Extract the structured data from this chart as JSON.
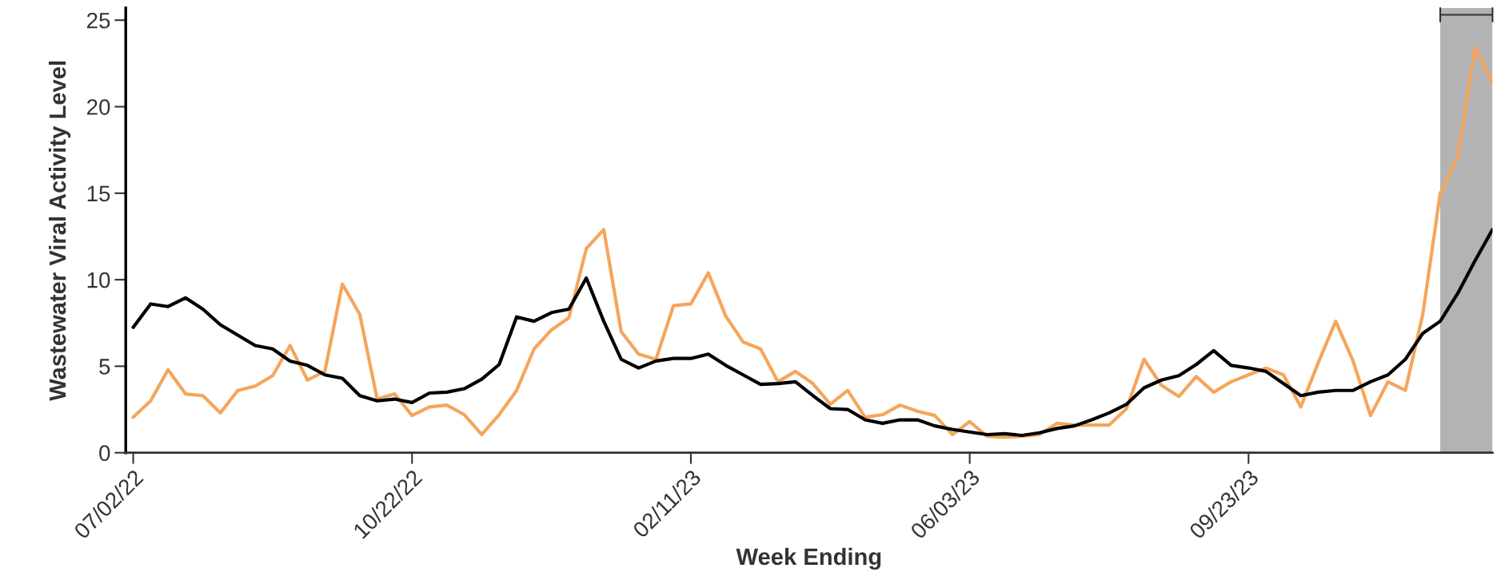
{
  "chart_data": {
    "type": "line",
    "xlabel": "Week Ending",
    "ylabel": "Wastewater Viral Activity Level",
    "x": [
      "2022-07-02",
      "2022-07-09",
      "2022-07-16",
      "2022-07-23",
      "2022-07-30",
      "2022-08-06",
      "2022-08-13",
      "2022-08-20",
      "2022-08-27",
      "2022-09-03",
      "2022-09-10",
      "2022-09-17",
      "2022-09-24",
      "2022-10-01",
      "2022-10-08",
      "2022-10-15",
      "2022-10-22",
      "2022-10-29",
      "2022-11-05",
      "2022-11-12",
      "2022-11-19",
      "2022-11-26",
      "2022-12-03",
      "2022-12-10",
      "2022-12-17",
      "2022-12-24",
      "2022-12-31",
      "2023-01-07",
      "2023-01-14",
      "2023-01-21",
      "2023-01-28",
      "2023-02-04",
      "2023-02-11",
      "2023-02-18",
      "2023-02-25",
      "2023-03-04",
      "2023-03-11",
      "2023-03-18",
      "2023-03-25",
      "2023-04-01",
      "2023-04-08",
      "2023-04-15",
      "2023-04-22",
      "2023-04-29",
      "2023-05-06",
      "2023-05-13",
      "2023-05-20",
      "2023-05-27",
      "2023-06-03",
      "2023-06-10",
      "2023-06-17",
      "2023-06-24",
      "2023-07-01",
      "2023-07-08",
      "2023-07-15",
      "2023-07-22",
      "2023-07-29",
      "2023-08-05",
      "2023-08-12",
      "2023-08-19",
      "2023-08-26",
      "2023-09-02",
      "2023-09-09",
      "2023-09-16",
      "2023-09-23",
      "2023-09-30",
      "2023-10-07",
      "2023-10-14",
      "2023-10-21",
      "2023-10-28",
      "2023-11-04",
      "2023-11-11",
      "2023-11-18",
      "2023-11-25",
      "2023-12-02",
      "2023-12-09",
      "2023-12-16",
      "2023-12-23",
      "2023-12-30"
    ],
    "series": [
      {
        "color": "#f5a55c",
        "values": [
          2.05,
          3.0,
          4.8,
          3.4,
          3.3,
          2.3,
          3.6,
          3.85,
          4.45,
          6.2,
          4.2,
          4.7,
          9.75,
          8.0,
          3.1,
          3.4,
          2.15,
          2.65,
          2.75,
          2.2,
          1.05,
          2.2,
          3.6,
          6.0,
          7.1,
          7.8,
          11.8,
          12.9,
          7.0,
          5.7,
          5.4,
          8.5,
          8.6,
          10.4,
          7.9,
          6.4,
          6.0,
          4.1,
          4.7,
          4.0,
          2.8,
          3.6,
          2.05,
          2.2,
          2.75,
          2.4,
          2.15,
          1.05,
          1.8,
          0.95,
          0.9,
          0.95,
          1.05,
          1.7,
          1.6,
          1.6,
          1.6,
          2.55,
          5.4,
          3.9,
          3.25,
          4.4,
          3.5,
          4.1,
          4.5,
          4.9,
          4.5,
          2.65,
          5.2,
          7.6,
          5.3,
          2.15,
          4.1,
          3.6,
          8.0,
          15.0,
          17.1,
          23.4,
          21.4
        ]
      },
      {
        "color": "#000000",
        "values": [
          7.25,
          8.6,
          8.45,
          8.95,
          8.3,
          7.4,
          6.8,
          6.2,
          6.0,
          5.3,
          5.05,
          4.5,
          4.3,
          3.3,
          3.0,
          3.1,
          2.9,
          3.45,
          3.5,
          3.7,
          4.25,
          5.1,
          7.85,
          7.6,
          8.1,
          8.3,
          10.1,
          7.6,
          5.4,
          4.9,
          5.3,
          5.45,
          5.45,
          5.7,
          5.05,
          4.5,
          3.95,
          4.0,
          4.1,
          3.3,
          2.55,
          2.5,
          1.9,
          1.7,
          1.9,
          1.9,
          1.55,
          1.35,
          1.2,
          1.05,
          1.1,
          1.0,
          1.15,
          1.4,
          1.55,
          1.9,
          2.3,
          2.8,
          3.75,
          4.2,
          4.45,
          5.1,
          5.9,
          5.05,
          4.9,
          4.7,
          4.0,
          3.3,
          3.5,
          3.6,
          3.6,
          4.1,
          4.5,
          5.4,
          6.9,
          7.6,
          9.2,
          11.1,
          12.9
        ]
      }
    ],
    "xlim": [
      "2022-06-29",
      "2023-12-30"
    ],
    "xticks": [
      {
        "value": "2022-07-02",
        "label": "07/02/22"
      },
      {
        "value": "2022-10-22",
        "label": "10/22/22"
      },
      {
        "value": "2023-02-11",
        "label": "02/11/23"
      },
      {
        "value": "2023-06-03",
        "label": "06/03/23"
      },
      {
        "value": "2023-09-23",
        "label": "09/23/23"
      }
    ],
    "ylim": [
      0,
      25.7
    ],
    "yticks": [
      0,
      5,
      10,
      15,
      20,
      25
    ],
    "bands": [
      {
        "axis": "x",
        "from": "2023-12-09",
        "to": "2023-12-30",
        "color": "#808080"
      }
    ],
    "grid": false,
    "legend": false,
    "marker": "none",
    "line_style": "solid"
  }
}
